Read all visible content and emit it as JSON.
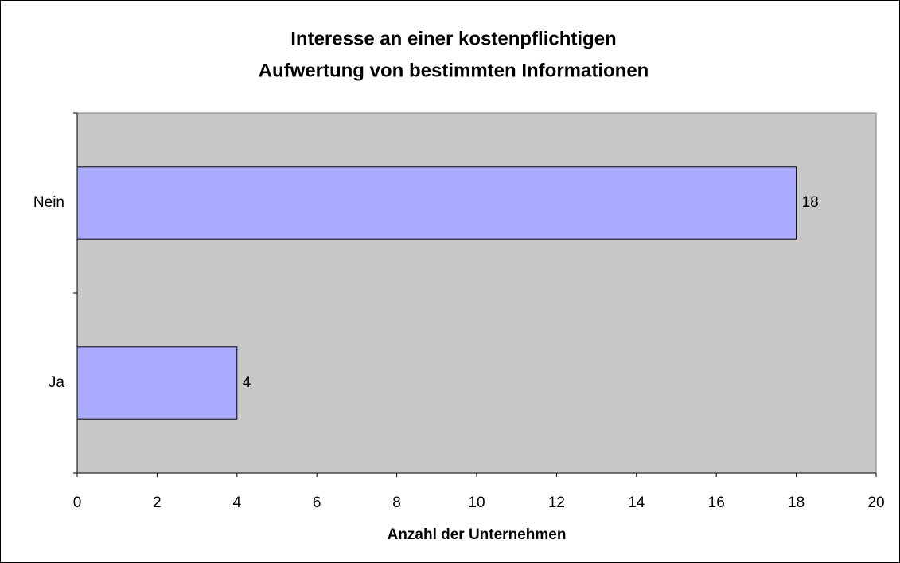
{
  "chart_data": {
    "type": "barh",
    "title": [
      "Interesse an einer kostenpflichtigen",
      "Aufwertung von bestimmten Informationen"
    ],
    "xlabel": "Anzahl der Unternehmen",
    "categories": [
      "Ja",
      "Nein"
    ],
    "values": [
      4,
      18
    ],
    "color": "#aaaaff",
    "plot_background": "#c8c8c8",
    "xlim": [
      0,
      20
    ],
    "xticks": [
      0,
      2,
      4,
      6,
      8,
      10,
      12,
      14,
      16,
      18,
      20
    ],
    "grid": false
  }
}
